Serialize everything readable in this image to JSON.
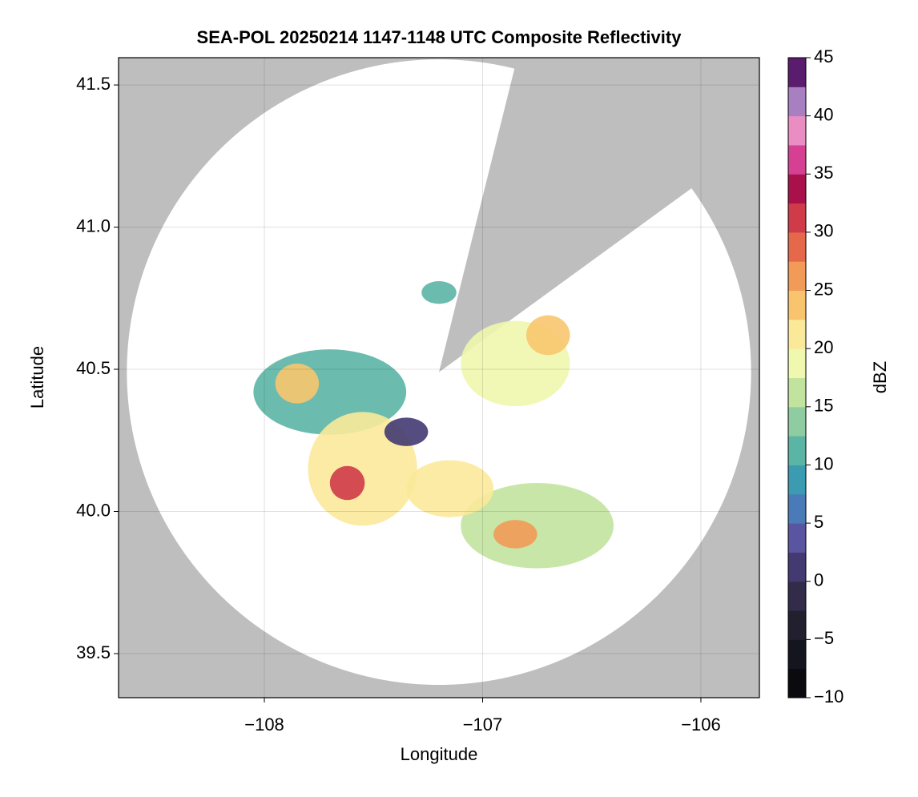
{
  "chart_data": {
    "type": "radar",
    "title": "SEA-POL 20250214 1147-1148 UTC Composite Reflectivity",
    "x_label": "Longitude",
    "y_label": "Latitude",
    "colorbar_label": "dBZ",
    "xlim": [
      -108.668,
      -105.732
    ],
    "ylim": [
      39.345,
      41.596
    ],
    "xticks": [
      {
        "value": -108,
        "label": "−108"
      },
      {
        "value": -107,
        "label": "−107"
      },
      {
        "value": -106,
        "label": "−106"
      }
    ],
    "yticks": [
      39.5,
      {
        "value": 40.0,
        "label": "40.0"
      },
      40.5,
      {
        "value": 41.0,
        "label": "41.0"
      },
      41.5
    ],
    "grid": true,
    "background": "#bebebe",
    "coverage": {
      "center": [
        -107.2,
        40.49
      ],
      "radius_lon": 1.43,
      "radius_lat": 1.1,
      "blocked_azimuth": [
        14,
        54
      ]
    },
    "clim": [
      -10,
      45
    ],
    "cticks": [
      {
        "value": -10,
        "label": "−10"
      },
      {
        "value": -5,
        "label": "−5"
      },
      0,
      5,
      10,
      15,
      20,
      25,
      30,
      35,
      40,
      45
    ],
    "colormap": [
      "#0a0a0f",
      "#15151f",
      "#22202f",
      "#322c4a",
      "#433a72",
      "#5a55a0",
      "#4a7bb8",
      "#3b9bb0",
      "#5bb5a5",
      "#8fcca1",
      "#c2e39e",
      "#f0f7ae",
      "#fbe99a",
      "#f8c56e",
      "#f29a58",
      "#e5684a",
      "#cf3b48",
      "#a8114a",
      "#d64093",
      "#e98dc3",
      "#a87fc0",
      "#5a1d6e"
    ],
    "echoes": {
      "lon": [
        -107.7,
        -107.55,
        -106.75,
        -106.85,
        -107.15,
        -107.85,
        -107.62,
        -106.85,
        -106.7,
        -107.35,
        -107.2
      ],
      "lat": [
        40.42,
        40.15,
        39.95,
        40.52,
        40.08,
        40.45,
        40.1,
        39.92,
        40.62,
        40.28,
        40.77
      ],
      "rx": [
        0.35,
        0.25,
        0.35,
        0.25,
        0.2,
        0.1,
        0.08,
        0.1,
        0.1,
        0.1,
        0.08
      ],
      "ry": [
        0.15,
        0.2,
        0.15,
        0.15,
        0.1,
        0.07,
        0.06,
        0.05,
        0.07,
        0.05,
        0.04
      ],
      "dbz": [
        12,
        20,
        15,
        18,
        22,
        24,
        32,
        27,
        24,
        0,
        10
      ]
    }
  }
}
